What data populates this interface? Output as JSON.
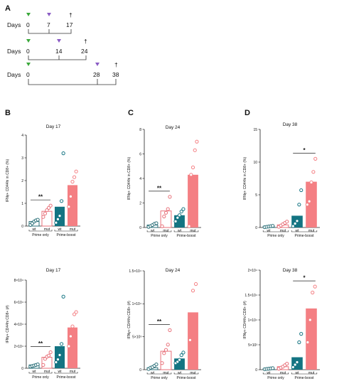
{
  "panel_letters": [
    "A",
    "B",
    "C",
    "D"
  ],
  "schedule": {
    "days_label": "Days",
    "dagger": "†",
    "rows": [
      {
        "start": "0",
        "boost": "7",
        "end": "17"
      },
      {
        "start": "0",
        "boost": "14",
        "end": "24"
      },
      {
        "start": "0",
        "boost": "28",
        "end": "38"
      }
    ],
    "colors": {
      "prime": "#3aa83a",
      "boost": "#8a5bc4"
    }
  },
  "colors": {
    "wt_prime": "#2a6f78",
    "mut_prime": "#e8717a",
    "wt_boost": "#137482",
    "mut_boost": "#f47f83"
  },
  "group_labels": {
    "prime": "Prime only",
    "boost": "Prime-boost"
  },
  "chart_data": [
    {
      "type": "bar",
      "title": "Day 17",
      "ylabel": "IFNγ+ CD44hi in CD8+ (%)",
      "ylim": [
        0,
        4
      ],
      "yticks": [
        "0",
        "1",
        "2",
        "3",
        "4"
      ],
      "tick_values": [
        0,
        1,
        2,
        3,
        4
      ],
      "categories": [
        "wt",
        "mut",
        "wt",
        "mut"
      ],
      "values": [
        0.2,
        0.65,
        0.85,
        1.8
      ],
      "points": [
        [
          0.05,
          0.12,
          0.2,
          0.25,
          0.28
        ],
        [
          0.4,
          0.55,
          0.7,
          0.8,
          0.9
        ],
        [
          0.15,
          0.3,
          0.45,
          1.1,
          3.2
        ],
        [
          0.85,
          1.3,
          1.95,
          2.15,
          2.4
        ]
      ],
      "significance": [
        {
          "label": "**",
          "groups": [
            0,
            1
          ]
        }
      ]
    },
    {
      "type": "bar",
      "title": "Day 24",
      "ylabel": "IFNγ+ CD44hi in CD8+ (%)",
      "ylim": [
        0,
        8
      ],
      "yticks": [
        "0",
        "2",
        "4",
        "6",
        "8"
      ],
      "tick_values": [
        0,
        2,
        4,
        6,
        8
      ],
      "categories": [
        "wt",
        "mut",
        "wt",
        "mut"
      ],
      "values": [
        0.2,
        1.35,
        1.0,
        4.3
      ],
      "points": [
        [
          0.05,
          0.12,
          0.2,
          0.3,
          0.35
        ],
        [
          0.1,
          0.9,
          1.2,
          1.5,
          2.5
        ],
        [
          0.5,
          0.8,
          1.0,
          1.3,
          1.5
        ],
        [
          0.1,
          4.3,
          4.9,
          6.3,
          7.0
        ]
      ],
      "significance": [
        {
          "label": "**",
          "groups": [
            0,
            1
          ]
        }
      ]
    },
    {
      "type": "bar",
      "title": "Day 38",
      "ylabel": "IFNγ+ CD44hi in CD8+ (%)",
      "ylim": [
        0,
        15
      ],
      "yticks": [
        "0",
        "5",
        "10",
        "15"
      ],
      "tick_values": [
        0,
        5,
        10,
        15
      ],
      "categories": [
        "wt",
        "mut",
        "wt",
        "mut"
      ],
      "values": [
        0.2,
        0.4,
        1.8,
        7.0
      ],
      "points": [
        [
          0.05,
          0.1,
          0.15,
          0.2,
          0.25
        ],
        [
          0.1,
          0.3,
          0.5,
          0.7,
          0.9
        ],
        [
          0.2,
          0.6,
          1.0,
          3.5,
          5.7
        ],
        [
          3.5,
          4.0,
          6.9,
          8.5,
          10.5
        ]
      ],
      "significance": [
        {
          "label": "*",
          "groups": [
            2,
            3
          ]
        }
      ]
    },
    {
      "type": "bar",
      "title": "Day 17",
      "ylabel": "IFNγ+ CD44hi CD8+ (#)",
      "ylim": [
        0,
        80000
      ],
      "yticks": [
        "0",
        "2×10⁴",
        "4×10⁴",
        "6×10⁴",
        "8×10⁴"
      ],
      "tick_values": [
        0,
        20000,
        40000,
        60000,
        80000
      ],
      "categories": [
        "wt",
        "mut",
        "wt",
        "mut"
      ],
      "values": [
        3000,
        10000,
        20000,
        37000
      ],
      "points": [
        [
          1500,
          2000,
          2500,
          3000,
          3500
        ],
        [
          3000,
          8500,
          10500,
          11500,
          14500
        ],
        [
          5500,
          8000,
          12000,
          22000,
          65000
        ],
        [
          20000,
          29000,
          38000,
          49000,
          51000
        ]
      ],
      "significance": [
        {
          "label": "**",
          "groups": [
            0,
            1
          ]
        }
      ]
    },
    {
      "type": "bar",
      "title": "Day 24",
      "ylabel": "IFNγ+ CD44hi CD8+ (#)",
      "ylim": [
        0,
        15000
      ],
      "yticks": [
        "0",
        "5×10³",
        "1×10⁴",
        "1.5×10⁴"
      ],
      "tick_values": [
        0,
        5000,
        10000,
        15000
      ],
      "categories": [
        "wt",
        "mut",
        "wt",
        "mut"
      ],
      "values": [
        300,
        2800,
        1700,
        8700
      ],
      "points": [
        [
          100,
          300,
          400,
          600,
          800
        ],
        [
          1000,
          2500,
          3000,
          3800,
          6000
        ],
        [
          1000,
          1200,
          1500,
          2200,
          2600
        ],
        [
          4500,
          12000,
          13000
        ]
      ],
      "significance": [
        {
          "label": "**",
          "groups": [
            0,
            1
          ]
        }
      ]
    },
    {
      "type": "bar",
      "title": "Day 38",
      "ylabel": "IFNγ+ CD44hi CD8+ (#)",
      "ylim": [
        0,
        20000
      ],
      "yticks": [
        "0",
        "5×10³",
        "1×10⁴",
        "1.5×10⁴",
        "2×10⁴"
      ],
      "tick_values": [
        0,
        5000,
        10000,
        15000,
        20000
      ],
      "categories": [
        "wt",
        "mut",
        "wt",
        "mut"
      ],
      "values": [
        200,
        600,
        2500,
        12300
      ],
      "points": [
        [
          100,
          150,
          200,
          250,
          300
        ],
        [
          200,
          400,
          600,
          900,
          1200
        ],
        [
          500,
          1000,
          1500,
          5500,
          7200
        ],
        [
          5500,
          10000,
          15500,
          16700
        ]
      ],
      "significance": [
        {
          "label": "*",
          "groups": [
            2,
            3
          ]
        }
      ]
    }
  ]
}
